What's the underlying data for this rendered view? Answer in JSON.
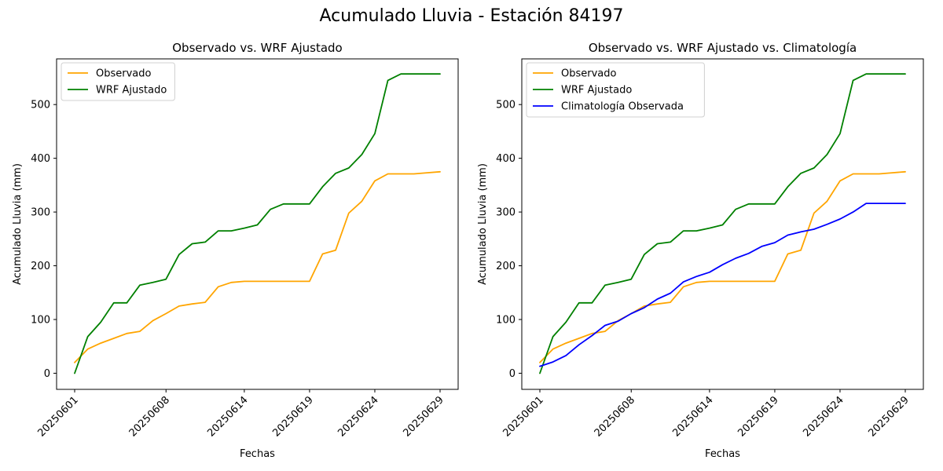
{
  "figure": {
    "suptitle": "Acumulado Lluvia - Estación 84197"
  },
  "chart_data": [
    {
      "type": "line",
      "title": "Observado vs. WRF Ajustado",
      "xlabel": "Fechas",
      "ylabel": "Acumulado Lluvia (mm)",
      "ylim": [
        -30,
        585
      ],
      "yticks": [
        0,
        100,
        200,
        300,
        400,
        500
      ],
      "xtick_labels": [
        "20250601",
        "20250608",
        "20250614",
        "20250619",
        "20250624",
        "20250629"
      ],
      "x": [
        "20250601",
        "20250602",
        "20250603",
        "20250604",
        "20250605",
        "20250606",
        "20250607",
        "20250608",
        "20250609",
        "20250610",
        "20250611",
        "20250612",
        "20250613",
        "20250614",
        "20250615",
        "20250616",
        "20250617",
        "20250618",
        "20250619",
        "20250620",
        "20250621",
        "20250622",
        "20250623",
        "20250624",
        "20250625",
        "20250626",
        "20250627",
        "20250628",
        "20250629"
      ],
      "legend": "upper left",
      "grid": false,
      "series": [
        {
          "name": "Observado",
          "color": "#ffa500",
          "values": [
            20,
            45,
            56,
            65,
            74,
            78,
            98,
            111,
            125,
            129,
            132,
            161,
            169,
            171,
            171,
            171,
            171,
            171,
            171,
            222,
            229,
            298,
            320,
            358,
            371,
            371,
            371,
            373,
            375
          ]
        },
        {
          "name": "WRF Ajustado",
          "color": "#008000",
          "values": [
            0,
            68,
            95,
            131,
            131,
            164,
            169,
            175,
            221,
            241,
            244,
            265,
            265,
            270,
            276,
            305,
            315,
            315,
            315,
            347,
            372,
            382,
            407,
            446,
            545,
            557,
            557,
            557,
            557
          ]
        }
      ]
    },
    {
      "type": "line",
      "title": "Observado vs. WRF Ajustado vs. Climatología",
      "xlabel": "Fechas",
      "ylabel": "Acumulado Lluvia (mm)",
      "ylim": [
        -30,
        585
      ],
      "yticks": [
        0,
        100,
        200,
        300,
        400,
        500
      ],
      "xtick_labels": [
        "20250601",
        "20250608",
        "20250614",
        "20250619",
        "20250624",
        "20250629"
      ],
      "x": [
        "20250601",
        "20250602",
        "20250603",
        "20250604",
        "20250605",
        "20250606",
        "20250607",
        "20250608",
        "20250609",
        "20250610",
        "20250611",
        "20250612",
        "20250613",
        "20250614",
        "20250615",
        "20250616",
        "20250617",
        "20250618",
        "20250619",
        "20250620",
        "20250621",
        "20250622",
        "20250623",
        "20250624",
        "20250625",
        "20250626",
        "20250627",
        "20250628",
        "20250629"
      ],
      "legend": "upper left",
      "grid": false,
      "series": [
        {
          "name": "Observado",
          "color": "#ffa500",
          "values": [
            20,
            45,
            56,
            65,
            74,
            78,
            98,
            111,
            125,
            129,
            132,
            161,
            169,
            171,
            171,
            171,
            171,
            171,
            171,
            222,
            229,
            298,
            320,
            358,
            371,
            371,
            371,
            373,
            375
          ]
        },
        {
          "name": "WRF Ajustado",
          "color": "#008000",
          "values": [
            0,
            68,
            95,
            131,
            131,
            164,
            169,
            175,
            221,
            241,
            244,
            265,
            265,
            270,
            276,
            305,
            315,
            315,
            315,
            347,
            372,
            382,
            407,
            446,
            545,
            557,
            557,
            557,
            557
          ]
        },
        {
          "name": "Climatología Observada",
          "color": "#0000ff",
          "values": [
            13,
            21,
            33,
            53,
            70,
            89,
            97,
            111,
            122,
            138,
            149,
            170,
            180,
            188,
            202,
            214,
            223,
            236,
            243,
            257,
            263,
            268,
            277,
            287,
            300,
            316,
            316,
            316,
            316
          ]
        }
      ]
    }
  ]
}
